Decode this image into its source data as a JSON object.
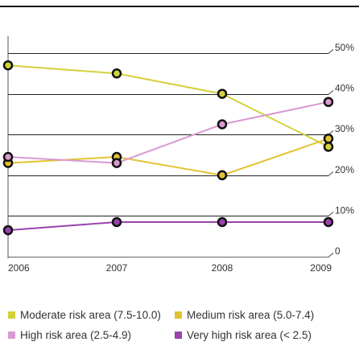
{
  "chart_data": {
    "type": "line",
    "x": [
      "2006",
      "2007",
      "2008",
      "2009"
    ],
    "ylim": [
      0,
      50
    ],
    "y_ticks": [
      "0",
      "10%",
      "20%",
      "30%",
      "40%",
      "50%"
    ],
    "series": [
      {
        "name": "Moderate risk area (7.5-10.0)",
        "color": "#d4d13a",
        "values": [
          47,
          45,
          40,
          27
        ]
      },
      {
        "name": "Medium risk area (5.0-7.4)",
        "color": "#e3c232",
        "values": [
          23,
          24.5,
          20,
          29
        ]
      },
      {
        "name": "High risk area (2.5-4.9)",
        "color": "#d89ad0",
        "values": [
          24.5,
          23,
          32.5,
          38
        ]
      },
      {
        "name": "Very high risk area (< 2.5)",
        "color": "#9a42ad",
        "values": [
          6.5,
          8.5,
          8.5,
          8.5
        ]
      }
    ]
  }
}
